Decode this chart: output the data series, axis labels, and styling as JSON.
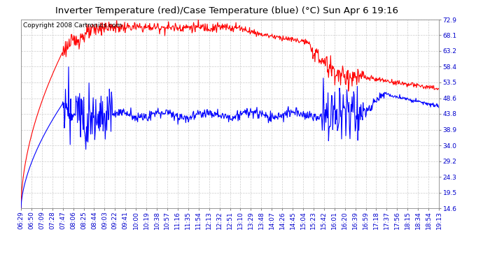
{
  "title": "Inverter Temperature (red)/Case Temperature (blue) (°C) Sun Apr 6 19:16",
  "copyright": "Copyright 2008 Cartronics.com",
  "y_ticks": [
    14.6,
    19.5,
    24.3,
    29.2,
    34.0,
    38.9,
    43.8,
    48.6,
    53.5,
    58.4,
    63.2,
    68.1,
    72.9
  ],
  "x_labels": [
    "06:29",
    "06:50",
    "07:09",
    "07:28",
    "07:47",
    "08:06",
    "08:25",
    "08:44",
    "09:03",
    "09:22",
    "09:41",
    "10:00",
    "10:19",
    "10:38",
    "10:57",
    "11:16",
    "11:35",
    "11:54",
    "12:13",
    "12:32",
    "12:51",
    "13:10",
    "13:29",
    "13:48",
    "14:07",
    "14:26",
    "14:45",
    "15:04",
    "15:23",
    "15:42",
    "16:01",
    "16:20",
    "16:39",
    "16:59",
    "17:18",
    "17:37",
    "17:56",
    "18:15",
    "18:34",
    "18:54",
    "19:13"
  ],
  "y_min": 14.6,
  "y_max": 72.9,
  "bg_color": "#ffffff",
  "plot_bg_color": "#ffffff",
  "grid_color": "#cccccc",
  "red_color": "#ff0000",
  "blue_color": "#0000ff",
  "title_fontsize": 9.5,
  "copyright_fontsize": 6.5,
  "tick_fontsize": 6.5,
  "tick_color": "#0000cc"
}
